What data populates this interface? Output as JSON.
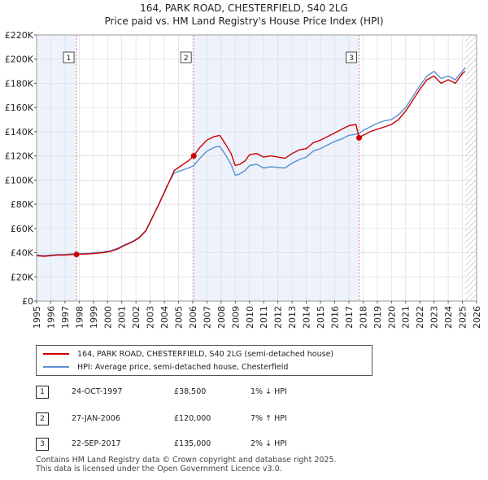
{
  "chart_data": {
    "type": "line",
    "title": "164, PARK ROAD, CHESTERFIELD, S40 2LG",
    "subtitle": "Price paid vs. HM Land Registry's House Price Index (HPI)",
    "xlim": [
      1995,
      2026
    ],
    "ylim": [
      0,
      220000
    ],
    "x_ticks": [
      "1995",
      "1996",
      "1997",
      "1998",
      "1999",
      "2000",
      "2001",
      "2002",
      "2003",
      "2004",
      "2005",
      "2006",
      "2007",
      "2008",
      "2009",
      "2010",
      "2011",
      "2012",
      "2013",
      "2014",
      "2015",
      "2016",
      "2017",
      "2018",
      "2019",
      "2020",
      "2021",
      "2022",
      "2023",
      "2024",
      "2025",
      "2026"
    ],
    "y_ticks": [
      "£0",
      "£20K",
      "£40K",
      "£60K",
      "£80K",
      "£100K",
      "£120K",
      "£140K",
      "£160K",
      "£180K",
      "£200K",
      "£220K"
    ],
    "y_tick_values": [
      0,
      20000,
      40000,
      60000,
      80000,
      100000,
      120000,
      140000,
      160000,
      180000,
      200000,
      220000
    ],
    "series": [
      {
        "name": "164, PARK ROAD, CHESTERFIELD, S40 2LG (semi-detached house)",
        "color": "#cc0000",
        "x": [
          1995,
          1995.5,
          1996,
          1996.5,
          1997,
          1997.5,
          1997.81,
          1998.2,
          1998.7,
          1999.2,
          1999.7,
          2000.2,
          2000.7,
          2001.2,
          2001.7,
          2002.2,
          2002.7,
          2003.2,
          2003.7,
          2004.2,
          2004.7,
          2005.2,
          2005.7,
          2006.07,
          2006.5,
          2007,
          2007.5,
          2007.9,
          2008.3,
          2008.7,
          2009,
          2009.3,
          2009.7,
          2010,
          2010.5,
          2011,
          2011.5,
          2012,
          2012.5,
          2013,
          2013.5,
          2014,
          2014.5,
          2015,
          2015.5,
          2016,
          2016.5,
          2017,
          2017.5,
          2017.72,
          2018,
          2018.5,
          2019,
          2019.5,
          2020,
          2020.5,
          2021,
          2021.5,
          2022,
          2022.5,
          2023,
          2023.5,
          2024,
          2024.5,
          2025,
          2025.2
        ],
        "y": [
          37500,
          37000,
          37500,
          38000,
          38000,
          38500,
          38500,
          38800,
          39000,
          39500,
          40000,
          41000,
          43000,
          46000,
          48500,
          52000,
          58000,
          70000,
          82000,
          95000,
          108000,
          112000,
          116000,
          120000,
          127000,
          133000,
          136000,
          137000,
          130000,
          122000,
          112000,
          113000,
          116000,
          121000,
          122000,
          119000,
          120000,
          119000,
          118000,
          122000,
          125000,
          126000,
          131000,
          133000,
          136000,
          139000,
          142000,
          145000,
          146000,
          135000,
          137000,
          140000,
          142000,
          144000,
          146000,
          150000,
          157000,
          166000,
          175000,
          183000,
          186000,
          180000,
          183000,
          180000,
          188000,
          190000
        ]
      },
      {
        "name": "HPI: Average price, semi-detached house, Chesterfield",
        "color": "#5b8fd1",
        "x": [
          1995,
          1995.5,
          1996,
          1996.5,
          1997,
          1997.5,
          1997.81,
          1998.2,
          1998.7,
          1999.2,
          1999.7,
          2000.2,
          2000.7,
          2001.2,
          2001.7,
          2002.2,
          2002.7,
          2003.2,
          2003.7,
          2004.2,
          2004.7,
          2005.2,
          2005.7,
          2006.07,
          2006.5,
          2007,
          2007.5,
          2007.9,
          2008.3,
          2008.7,
          2009,
          2009.3,
          2009.7,
          2010,
          2010.5,
          2011,
          2011.5,
          2012,
          2012.5,
          2013,
          2013.5,
          2014,
          2014.5,
          2015,
          2015.5,
          2016,
          2016.5,
          2017,
          2017.5,
          2017.72,
          2018,
          2018.5,
          2019,
          2019.5,
          2020,
          2020.5,
          2021,
          2021.5,
          2022,
          2022.5,
          2023,
          2023.5,
          2024,
          2024.5,
          2025,
          2025.2
        ],
        "y": [
          38000,
          37500,
          38000,
          38500,
          38500,
          39000,
          39000,
          39200,
          39500,
          40000,
          40500,
          41500,
          43500,
          46500,
          49000,
          52500,
          58500,
          70500,
          82500,
          95500,
          106000,
          108000,
          110000,
          112000,
          118000,
          124000,
          127000,
          128000,
          121000,
          113000,
          104000,
          105000,
          108000,
          112000,
          113000,
          110000,
          111000,
          110500,
          110000,
          114000,
          117000,
          119000,
          124000,
          126000,
          129000,
          132000,
          134000,
          137000,
          138000,
          138500,
          141000,
          144000,
          147000,
          149000,
          150000,
          154000,
          160000,
          169000,
          178000,
          186000,
          190000,
          184000,
          186000,
          183000,
          190000,
          193000
        ]
      }
    ],
    "sales": [
      {
        "label": "1",
        "x": 1997.81,
        "y": 38500,
        "date": "24-OCT-1997",
        "price": "£38,500",
        "hpi": "1% ↓ HPI"
      },
      {
        "label": "2",
        "x": 2006.07,
        "y": 120000,
        "date": "27-JAN-2006",
        "price": "£120,000",
        "hpi": "7% ↑ HPI"
      },
      {
        "label": "3",
        "x": 2017.72,
        "y": 135000,
        "date": "22-SEP-2017",
        "price": "£135,000",
        "hpi": "2% ↓ HPI"
      }
    ],
    "shaded_spans": [
      [
        1995,
        1997.81
      ],
      [
        2006.07,
        2017.72
      ],
      [
        2025.2,
        2026
      ]
    ],
    "colors": {
      "plot_bg": "#eef3fb",
      "grid": "#ffffff",
      "sale_line": "#dd8888",
      "hatch": "#aaaaaa",
      "marker": "#cc0000"
    }
  },
  "footer": {
    "line1": "Contains HM Land Registry data © Crown copyright and database right 2025.",
    "line2": "This data is licensed under the Open Government Licence v3.0."
  }
}
